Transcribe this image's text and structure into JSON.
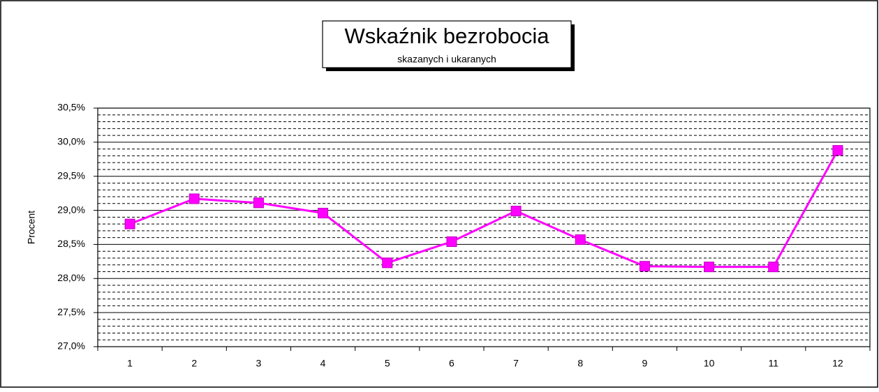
{
  "chart_data": {
    "type": "line",
    "title": "Wskaźnik bezrobocia",
    "subtitle": "skazanych i ukaranych",
    "y_label": "Procent",
    "categories": [
      "1",
      "2",
      "3",
      "4",
      "5",
      "6",
      "7",
      "8",
      "9",
      "10",
      "11",
      "12"
    ],
    "series": [
      {
        "name": "Wskaźnik bezrobocia",
        "color": "#ff00ff",
        "values": [
          28.8,
          29.17,
          29.11,
          28.96,
          28.23,
          28.54,
          28.99,
          28.57,
          28.18,
          28.17,
          28.17,
          29.88
        ]
      }
    ],
    "ylim": [
      27.0,
      30.5
    ],
    "yticks": [
      {
        "value": 27.0,
        "label": "27,0%"
      },
      {
        "value": 27.5,
        "label": "27,5%"
      },
      {
        "value": 28.0,
        "label": "28,0%"
      },
      {
        "value": 28.5,
        "label": "28,5%"
      },
      {
        "value": 29.0,
        "label": "29,0%"
      },
      {
        "value": 29.5,
        "label": "29,5%"
      },
      {
        "value": 30.0,
        "label": "30,0%"
      },
      {
        "value": 30.5,
        "label": "30,5%"
      }
    ],
    "minor_yticks": [
      27.1,
      27.2,
      27.3,
      27.4,
      27.6,
      27.7,
      27.8,
      27.9,
      28.1,
      28.2,
      28.3,
      28.4,
      28.6,
      28.7,
      28.8,
      28.9,
      29.1,
      29.2,
      29.3,
      29.4,
      29.6,
      29.7,
      29.8,
      29.9,
      30.1,
      30.2,
      30.3,
      30.4
    ],
    "grid": true,
    "legend": false
  }
}
